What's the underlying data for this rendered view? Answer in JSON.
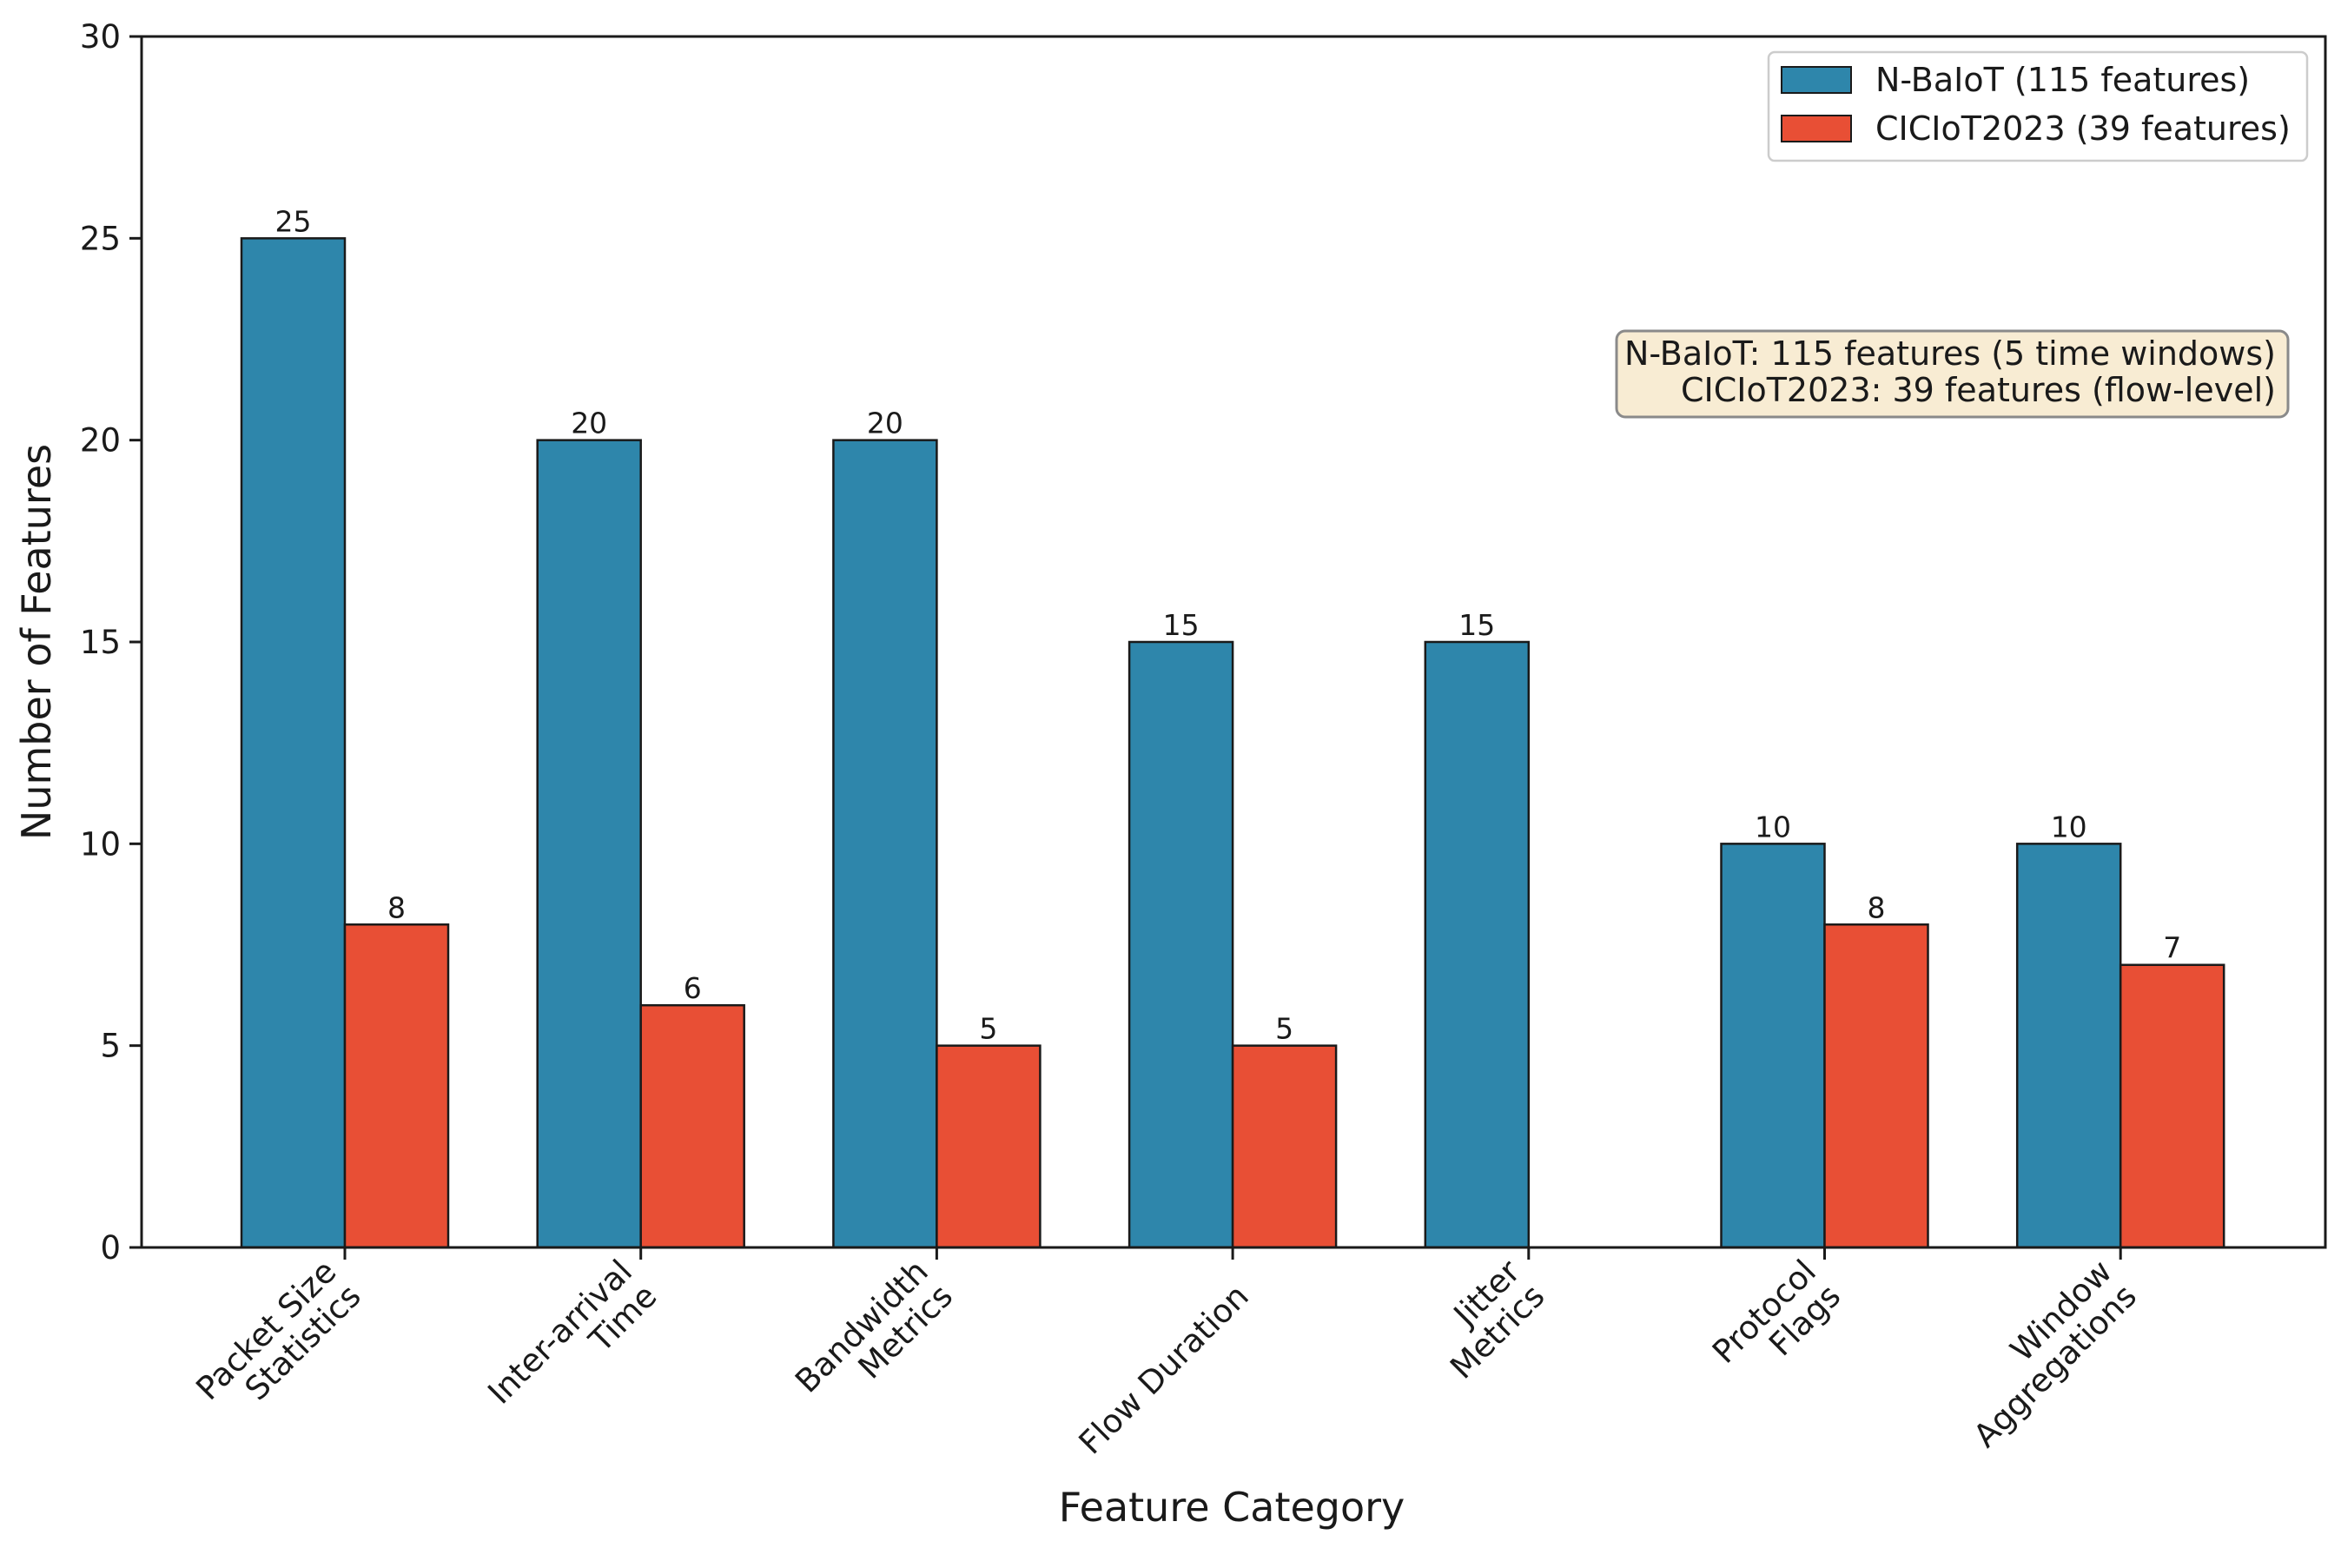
{
  "chart_data": {
    "type": "bar",
    "title": "",
    "xlabel": "Feature Category",
    "ylabel": "Number of Features",
    "ylim": [
      0,
      30
    ],
    "yticks": [
      0,
      5,
      10,
      15,
      20,
      25,
      30
    ],
    "categories": [
      [
        "Packet Size",
        "Statistics"
      ],
      [
        "Inter-arrival",
        "Time"
      ],
      [
        "Bandwidth",
        "Metrics"
      ],
      [
        "Flow Duration"
      ],
      [
        "Jitter",
        "Metrics"
      ],
      [
        "Protocol",
        "Flags"
      ],
      [
        "Window",
        "Aggregations"
      ]
    ],
    "series": [
      {
        "name": "N-BaIoT (115 features)",
        "color": "#2e86ab",
        "values": [
          25,
          20,
          20,
          15,
          15,
          10,
          10
        ]
      },
      {
        "name": "CICIoT2023 (39 features)",
        "color": "#e84f35",
        "values": [
          8,
          6,
          5,
          5,
          0,
          8,
          7
        ]
      }
    ],
    "legend_position": "top-right",
    "annotation": {
      "lines": [
        "N-BaIoT: 115 features (5 time windows)",
        "CICIoT2023: 39 features (flow-level)"
      ],
      "background": "#f8ecd3",
      "border": "#8a8a8a"
    }
  }
}
